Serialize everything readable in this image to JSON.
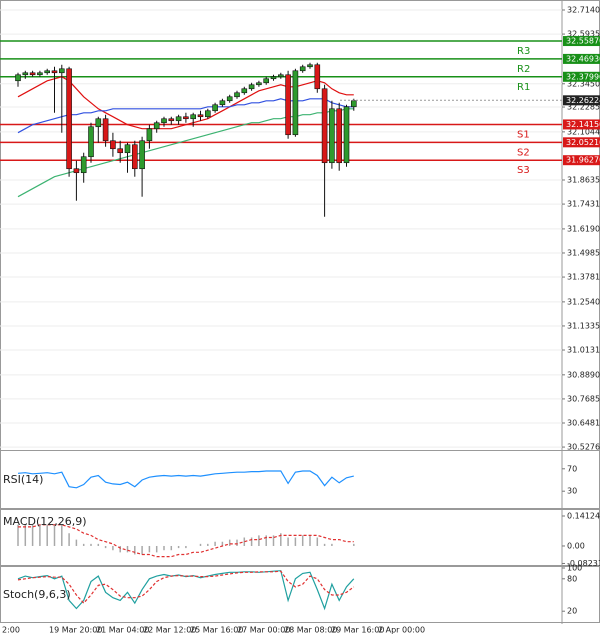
{
  "chart_data": [
    {
      "type": "candlestick",
      "open": [
        32.36,
        32.39,
        32.4,
        32.39,
        32.4,
        32.41,
        32.4,
        32.42,
        31.92,
        31.9,
        31.98,
        32.13,
        32.17,
        32.06,
        32.02,
        32.0,
        32.04,
        31.92,
        32.06,
        32.12,
        32.15,
        32.17,
        32.16,
        32.18,
        32.17,
        32.19,
        32.18,
        32.21,
        32.24,
        32.26,
        32.28,
        32.3,
        32.32,
        32.34,
        32.35,
        32.37,
        32.38,
        32.39,
        32.09,
        32.41,
        32.43,
        32.44,
        32.32,
        31.95,
        32.22,
        31.95,
        32.23
      ],
      "high": [
        32.4,
        32.41,
        32.41,
        32.41,
        32.42,
        32.43,
        32.44,
        32.43,
        31.96,
        32.0,
        32.15,
        32.18,
        32.19,
        32.1,
        32.06,
        32.05,
        32.06,
        32.08,
        32.14,
        32.16,
        32.18,
        32.18,
        32.19,
        32.2,
        32.2,
        32.21,
        32.22,
        32.25,
        32.27,
        32.29,
        32.31,
        32.33,
        32.35,
        32.36,
        32.38,
        32.39,
        32.4,
        32.41,
        32.42,
        32.44,
        32.45,
        32.45,
        32.34,
        32.26,
        32.25,
        32.24,
        32.27
      ],
      "low": [
        32.33,
        32.37,
        32.38,
        32.38,
        32.39,
        32.2,
        32.1,
        31.88,
        31.76,
        31.85,
        31.95,
        32.05,
        32.03,
        31.98,
        31.95,
        31.9,
        31.88,
        31.78,
        32.02,
        32.1,
        32.13,
        32.14,
        32.14,
        32.15,
        32.13,
        32.16,
        32.17,
        32.2,
        32.23,
        32.25,
        32.27,
        32.29,
        32.31,
        32.33,
        32.34,
        32.36,
        32.37,
        32.07,
        32.08,
        32.4,
        32.42,
        32.3,
        31.68,
        31.92,
        31.91,
        31.93,
        32.21
      ],
      "close": [
        32.39,
        32.4,
        32.39,
        32.4,
        32.41,
        32.4,
        32.42,
        31.92,
        31.9,
        31.98,
        32.13,
        32.17,
        32.06,
        32.02,
        32.0,
        32.04,
        31.92,
        32.06,
        32.12,
        32.15,
        32.17,
        32.16,
        32.18,
        32.17,
        32.19,
        32.18,
        32.21,
        32.24,
        32.26,
        32.28,
        32.3,
        32.32,
        32.34,
        32.35,
        32.37,
        32.38,
        32.39,
        32.09,
        32.41,
        32.43,
        32.44,
        32.32,
        31.95,
        32.22,
        31.95,
        32.23,
        32.26
      ],
      "up_color": "#2e9a2e",
      "down_color": "#d81818",
      "series": [
        {
          "color": "#e01010",
          "values": [
            32.28,
            32.3,
            32.32,
            32.34,
            32.36,
            32.37,
            32.38,
            32.36,
            32.32,
            32.28,
            32.25,
            32.22,
            32.2,
            32.18,
            32.16,
            32.14,
            32.13,
            32.12,
            32.12,
            32.12,
            32.12,
            32.12,
            32.13,
            32.14,
            32.15,
            32.16,
            32.17,
            32.19,
            32.21,
            32.23,
            32.25,
            32.27,
            32.29,
            32.31,
            32.32,
            32.33,
            32.34,
            32.33,
            32.33,
            32.34,
            32.35,
            32.36,
            32.35,
            32.32,
            32.3,
            32.29,
            32.29
          ]
        },
        {
          "color": "#3050e0",
          "values": [
            32.1,
            32.12,
            32.14,
            32.15,
            32.16,
            32.17,
            32.18,
            32.19,
            32.19,
            32.2,
            32.2,
            32.21,
            32.21,
            32.22,
            32.22,
            32.22,
            32.22,
            32.22,
            32.22,
            32.22,
            32.22,
            32.22,
            32.22,
            32.22,
            32.22,
            32.22,
            32.23,
            32.23,
            32.23,
            32.23,
            32.24,
            32.24,
            32.25,
            32.25,
            32.26,
            32.26,
            32.27,
            32.26,
            32.26,
            32.26,
            32.27,
            32.27,
            32.27,
            32.25,
            32.24,
            32.23,
            32.23
          ]
        },
        {
          "color": "#3cb371",
          "values": [
            31.78,
            31.8,
            31.82,
            31.84,
            31.86,
            31.88,
            31.89,
            31.9,
            31.91,
            31.92,
            31.93,
            31.94,
            31.95,
            31.96,
            31.97,
            31.98,
            31.99,
            32.0,
            32.01,
            32.02,
            32.03,
            32.04,
            32.05,
            32.06,
            32.07,
            32.08,
            32.09,
            32.1,
            32.11,
            32.12,
            32.13,
            32.14,
            32.15,
            32.15,
            32.16,
            32.17,
            32.17,
            32.18,
            32.18,
            32.19,
            32.19,
            32.2,
            32.2,
            32.21,
            32.21,
            32.22,
            32.22
          ]
        }
      ],
      "ylim": [
        30.513,
        32.754
      ],
      "yticks": [
        {
          "value": 32.714,
          "label": "32.71400"
        },
        {
          "value": 32.59355,
          "label": "32.59355"
        },
        {
          "value": 32.345,
          "label": "32.34500"
        },
        {
          "value": 32.22855,
          "label": "32.22855"
        },
        {
          "value": 32.10445,
          "label": "32.10445"
        },
        {
          "value": 31.86355,
          "label": "31.86355"
        },
        {
          "value": 31.7431,
          "label": "31.74310"
        },
        {
          "value": 31.619,
          "label": "31.61900"
        },
        {
          "value": 31.49855,
          "label": "31.49855"
        },
        {
          "value": 31.3781,
          "label": "31.37810"
        },
        {
          "value": 31.254,
          "label": "31.25400"
        },
        {
          "value": 31.13355,
          "label": "31.13355"
        },
        {
          "value": 31.0131,
          "label": "31.01310"
        },
        {
          "value": 30.889,
          "label": "30.88900"
        },
        {
          "value": 30.76855,
          "label": "30.76855"
        },
        {
          "value": 30.6481,
          "label": "30.64810"
        },
        {
          "value": 30.52765,
          "label": "30.52765"
        }
      ],
      "levels": [
        {
          "name": "R3",
          "value": 32.5587,
          "label": "32.55870",
          "color": "#189018"
        },
        {
          "name": "R2",
          "value": 32.4693,
          "label": "32.46930",
          "color": "#189018"
        },
        {
          "name": "R1",
          "value": 32.3799,
          "label": "32.37990",
          "color": "#189018"
        },
        {
          "name": "S1",
          "value": 32.1415,
          "label": "32.14150",
          "color": "#d81818"
        },
        {
          "name": "S2",
          "value": 32.0521,
          "label": "32.05210",
          "color": "#d81818"
        },
        {
          "name": "S3",
          "value": 31.9627,
          "label": "31.96270",
          "color": "#d81818"
        }
      ],
      "current": {
        "value": 32.26224,
        "label": "32.26224"
      },
      "x_labels": [
        "2:00",
        "19 Mar 20:00",
        "21 Mar 04:00",
        "22 Mar 12:00",
        "25 Mar 16:00",
        "27 Mar 00:00",
        "28 Mar 08:00",
        "29 Mar 16:00",
        "2 Apr 00:00"
      ]
    },
    {
      "type": "line",
      "title": "RSI(14)",
      "ylim": [
        0,
        100
      ],
      "yticks": [
        70,
        30
      ],
      "series": [
        {
          "color": "#1e90ff",
          "values": [
            62,
            63,
            61,
            62,
            63,
            61,
            64,
            38,
            36,
            42,
            55,
            58,
            46,
            43,
            42,
            46,
            38,
            50,
            55,
            57,
            58,
            57,
            58,
            57,
            58,
            57,
            59,
            61,
            62,
            63,
            64,
            64,
            65,
            65,
            66,
            66,
            66,
            44,
            64,
            66,
            66,
            58,
            40,
            55,
            45,
            54,
            57
          ]
        }
      ]
    },
    {
      "type": "macd",
      "title": "MACD(12,26,9)",
      "ylim": [
        -0.0896,
        0.1648
      ],
      "yticks": [
        0.14124,
        {
          "value": 0,
          "label": "0.00"
        },
        -0.082317
      ],
      "histogram": {
        "color": "#a8a8a8",
        "values": [
          0.1,
          0.1,
          0.1,
          0.1,
          0.1,
          0.1,
          0.1,
          0.06,
          0.03,
          0.01,
          0.01,
          0.01,
          -0.01,
          -0.02,
          -0.03,
          -0.03,
          -0.04,
          -0.04,
          -0.03,
          -0.03,
          -0.02,
          -0.02,
          -0.01,
          -0.01,
          0,
          0.01,
          0.01,
          0.02,
          0.02,
          0.03,
          0.03,
          0.04,
          0.04,
          0.05,
          0.05,
          0.05,
          0.06,
          0.04,
          0.04,
          0.05,
          0.05,
          0.04,
          0.01,
          0.01,
          0.0,
          0.0,
          0.01
        ]
      },
      "series": [
        {
          "color": "#e03030",
          "dashed": true,
          "values": [
            0.09,
            0.09,
            0.09,
            0.1,
            0.1,
            0.1,
            0.1,
            0.09,
            0.08,
            0.06,
            0.05,
            0.03,
            0.02,
            0.01,
            -0.01,
            -0.02,
            -0.03,
            -0.04,
            -0.04,
            -0.05,
            -0.05,
            -0.05,
            -0.04,
            -0.04,
            -0.03,
            -0.03,
            -0.02,
            -0.01,
            0,
            0.01,
            0.01,
            0.02,
            0.03,
            0.03,
            0.04,
            0.04,
            0.05,
            0.05,
            0.05,
            0.05,
            0.05,
            0.05,
            0.04,
            0.03,
            0.03,
            0.02,
            0.02
          ]
        }
      ]
    },
    {
      "type": "line",
      "title": "Stoch(9,6,3)",
      "ylim": [
        0,
        100
      ],
      "yticks": [
        100,
        80,
        20
      ],
      "series": [
        {
          "color": "#20a0a0",
          "values": [
            80,
            85,
            82,
            84,
            86,
            80,
            85,
            40,
            25,
            40,
            75,
            85,
            55,
            45,
            40,
            55,
            35,
            60,
            80,
            85,
            88,
            85,
            87,
            84,
            86,
            82,
            85,
            88,
            90,
            92,
            92,
            93,
            93,
            92,
            93,
            94,
            95,
            40,
            80,
            90,
            92,
            60,
            25,
            70,
            40,
            65,
            80
          ]
        },
        {
          "color": "#e03030",
          "dashed": true,
          "values": [
            78,
            80,
            82,
            83,
            84,
            83,
            83,
            70,
            50,
            35,
            50,
            68,
            70,
            60,
            48,
            45,
            45,
            48,
            60,
            75,
            82,
            85,
            86,
            85,
            85,
            84,
            84,
            85,
            87,
            89,
            91,
            92,
            92,
            93,
            93,
            93,
            94,
            75,
            65,
            70,
            85,
            80,
            60,
            50,
            50,
            55,
            65
          ]
        }
      ]
    }
  ]
}
